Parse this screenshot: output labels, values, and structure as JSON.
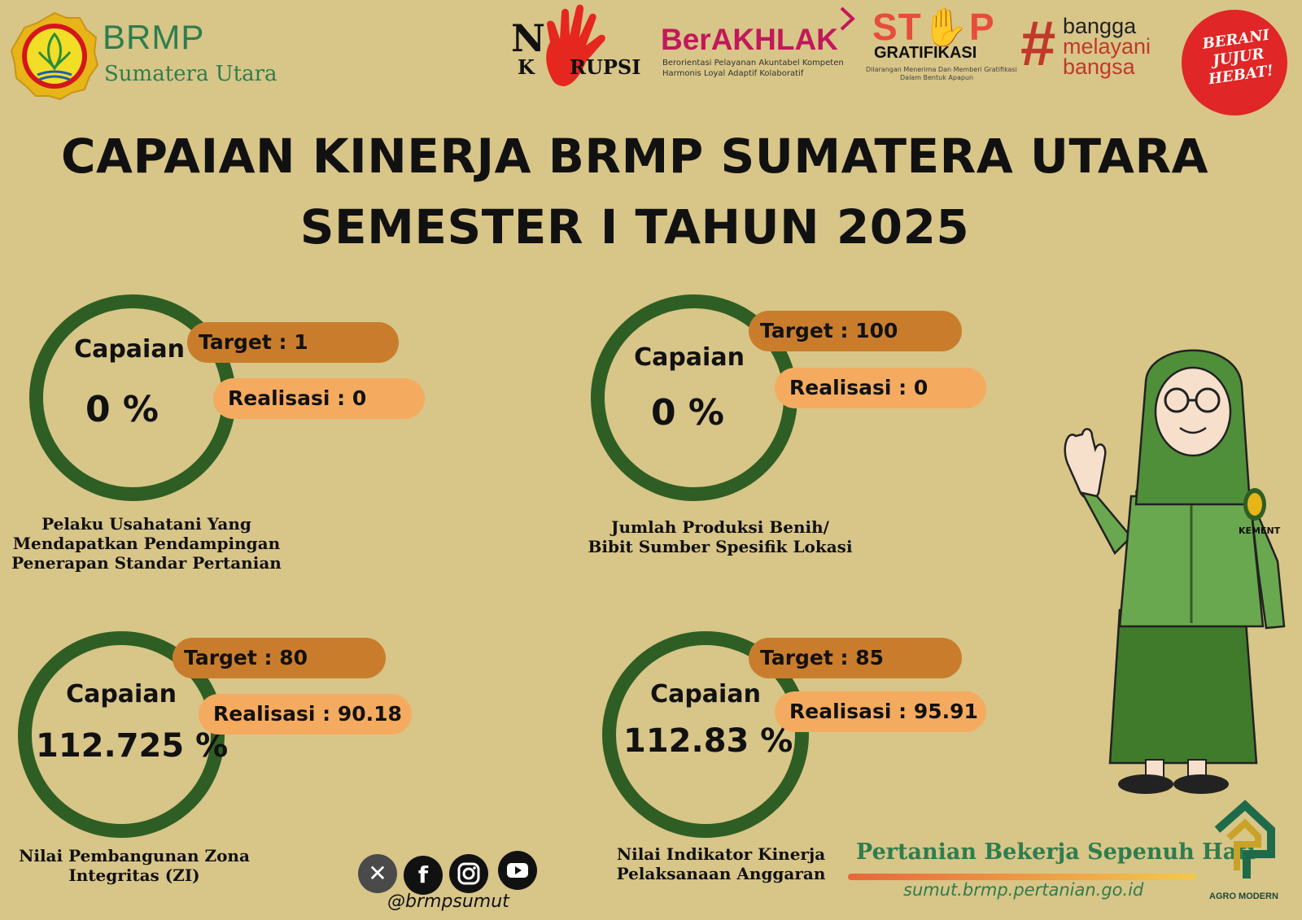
{
  "header": {
    "brand_name": "BRMP",
    "brand_sub": "Sumatera Utara",
    "nokorupsi": {
      "n": "N",
      "k": "K",
      "rupsi": "RUPSI"
    },
    "berakhlak": {
      "title": "BerAKHLAK",
      "line1": "Berorientasi Pelayanan Akuntabel Kompeten",
      "line2": "Harmonis Loyal Adaptif Kolaboratif"
    },
    "stop": {
      "title": "ST✋P",
      "subtitle": "GRATIFIKASI",
      "line1": "Dilarangan Menerima Dan Memberi Gratifikasi",
      "line2": "Dalam Bentuk Apapun"
    },
    "bangga": {
      "hash": "#",
      "l1": "bangga",
      "l2": "melayani",
      "l3": "bangsa"
    },
    "berani": "BERANI JUJUR HEBAT!"
  },
  "title": {
    "line1": "CAPAIAN KINERJA BRMP SUMATERA UTARA",
    "line2": "SEMESTER I TAHUN 2025"
  },
  "kpis": [
    {
      "capaian_label": "Capaian",
      "capaian_value": "0 %",
      "target": "Target : 1",
      "realisasi": "Realisasi : 0",
      "desc1": "Pelaku Usahatani Yang",
      "desc2": "Mendapatkan Pendampingan",
      "desc3": "Penerapan Standar Pertanian"
    },
    {
      "capaian_label": "Capaian",
      "capaian_value": "0 %",
      "target": "Target : 100",
      "realisasi": "Realisasi  : 0",
      "desc1": "Jumlah Produksi Benih/",
      "desc2": "Bibit Sumber Spesifik Lokasi"
    },
    {
      "capaian_label": "Capaian",
      "capaian_value": "112.725 %",
      "target": "Target  : 80",
      "realisasi": "Realisasi : 90.18",
      "desc1": "Nilai Pembangunan Zona",
      "desc2": "Integritas (ZI)"
    },
    {
      "capaian_label": "Capaian",
      "capaian_value": "112.83 %",
      "target": "Target : 85",
      "realisasi": "Realisasi : 95.91",
      "desc1": "Nilai Indikator Kinerja",
      "desc2": "Pelaksanaan Anggaran"
    }
  ],
  "footer": {
    "social_icons": [
      "x-icon",
      "facebook-icon",
      "instagram-icon",
      "youtube-icon"
    ],
    "handle": "@brmpsumut",
    "slogan": "Pertanian Bekerja Sepenuh Hati",
    "url": "sumut.brmp.pertanian.go.id",
    "agro": "AGRO MODERN",
    "uniform_badge": "KEMENT"
  },
  "colors": {
    "background": "#d8c588",
    "ring": "#2e5e24",
    "target_pill": "#c97d2c",
    "realisasi_pill": "#f4ab5f",
    "brand_green": "#2e7d4f",
    "accent_red": "#e02626"
  }
}
